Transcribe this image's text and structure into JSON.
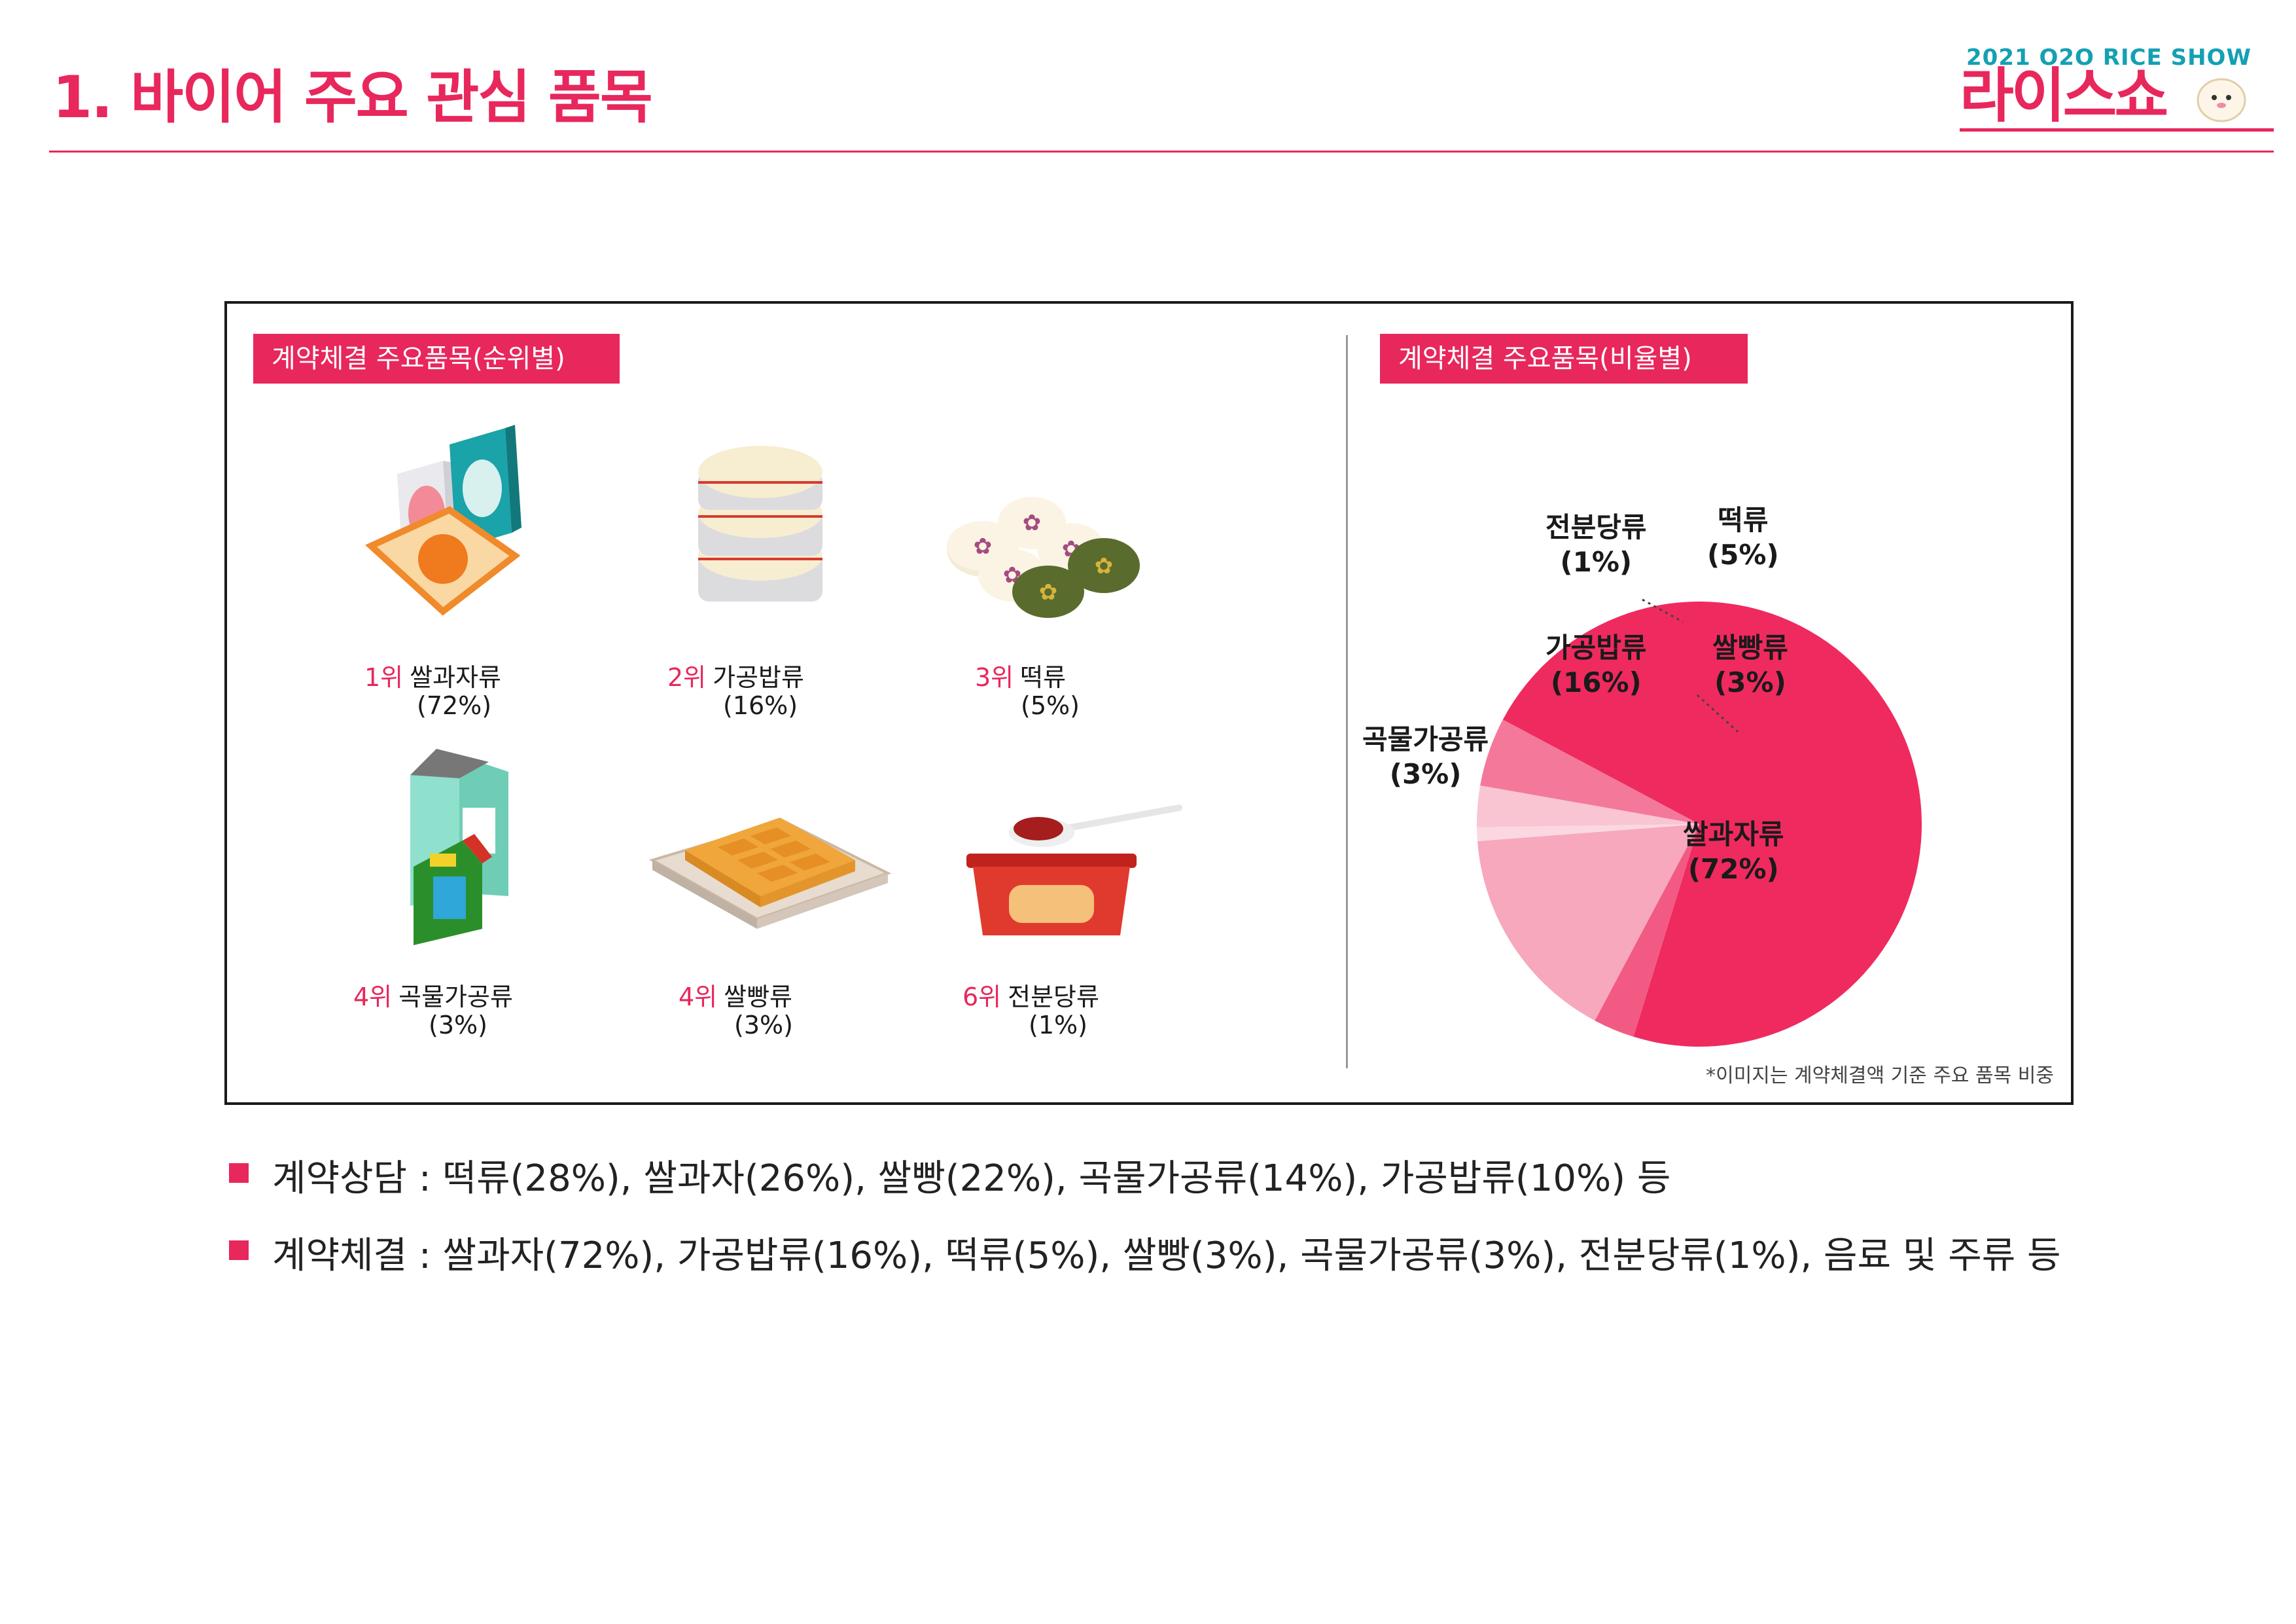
{
  "header": {
    "title": "1. 바이어 주요 관심 품목",
    "logo_top": "2021 O2O RICE SHOW",
    "logo_main": "라이스쇼"
  },
  "panel": {
    "left_label": "계약체결 주요품목(순위별)",
    "right_label": "계약체결 주요품목(비율별)",
    "items": [
      {
        "rank": "1위",
        "name": "쌀과자류",
        "pct": "(72%)",
        "icon": "rice-cracker-icon"
      },
      {
        "rank": "2위",
        "name": "가공밥류",
        "pct": "(16%)",
        "icon": "processed-rice-icon"
      },
      {
        "rank": "3위",
        "name": "떡류",
        "pct": "(5%)",
        "icon": "rice-cake-icon"
      },
      {
        "rank": "4위",
        "name": "곡물가공류",
        "pct": "(3%)",
        "icon": "grain-product-icon"
      },
      {
        "rank": "4위",
        "name": "쌀빵류",
        "pct": "(3%)",
        "icon": "rice-bread-icon"
      },
      {
        "rank": "6위",
        "name": "전분당류",
        "pct": "(1%)",
        "icon": "starch-sugar-icon"
      }
    ],
    "footnote": "*이미지는 계약체결액 기준 주요 품목 비중"
  },
  "chart_data": {
    "type": "pie",
    "slices": [
      {
        "label": "쌀과자류",
        "pct_label": "(72%)",
        "value": 72,
        "color": "#ef2a5f"
      },
      {
        "label": "곡물가공류",
        "pct_label": "(3%)",
        "value": 3,
        "color": "#f25a84"
      },
      {
        "label": "가공밥류",
        "pct_label": "(16%)",
        "value": 16,
        "color": "#f7a8bd"
      },
      {
        "label": "전분당류",
        "pct_label": "(1%)",
        "value": 1,
        "color": "#fbd8e1"
      },
      {
        "label": "쌀빵류",
        "pct_label": "(3%)",
        "value": 3,
        "color": "#f9c5d3"
      },
      {
        "label": "떡류",
        "pct_label": "(5%)",
        "value": 5,
        "color": "#f4789a"
      }
    ]
  },
  "bullets": [
    "계약상담 : 떡류(28%), 쌀과자(26%), 쌀빵(22%), 곡물가공류(14%), 가공밥류(10%) 등",
    "계약체결 : 쌀과자(72%), 가공밥류(16%), 떡류(5%), 쌀빵(3%), 곡물가공류(3%), 전분당류(1%), 음료 및 주류 등"
  ]
}
